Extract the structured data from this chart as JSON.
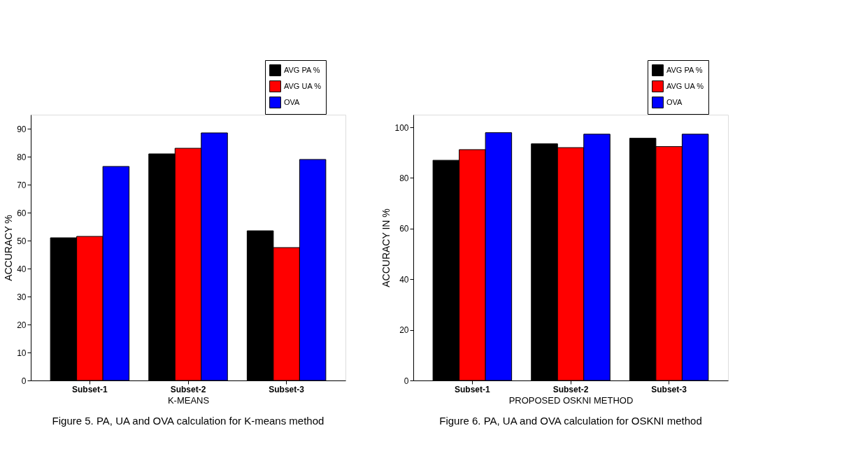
{
  "chart_data": [
    {
      "type": "bar",
      "xlabel": "K-MEANS",
      "ylabel": "ACCURACY %",
      "categories": [
        "Subset-1",
        "Subset-2",
        "Subset-3"
      ],
      "series": [
        {
          "name": "AVG PA %",
          "color": "#000000",
          "values": [
            51,
            81,
            53.5
          ]
        },
        {
          "name": "AVG UA %",
          "color": "#ff0000",
          "values": [
            51.5,
            83,
            47.5
          ]
        },
        {
          "name": "OVA",
          "color": "#0000ff",
          "values": [
            76.5,
            88.5,
            79
          ]
        }
      ],
      "ylim": [
        0,
        95
      ],
      "yticks": [
        0,
        10,
        20,
        30,
        40,
        50,
        60,
        70,
        80,
        90
      ],
      "grid": false,
      "legend": "top right",
      "annotations": [
        "Figure 5. PA, UA and OVA calculation for K-means method"
      ]
    },
    {
      "type": "bar",
      "xlabel": "PROPOSED OSKNI METHOD",
      "ylabel": "ACCURACY IN %",
      "categories": [
        "Subset-1",
        "Subset-2",
        "Subset-3"
      ],
      "series": [
        {
          "name": "AVG PA %",
          "color": "#000000",
          "values": [
            87,
            93.5,
            95.7
          ]
        },
        {
          "name": "AVG UA %",
          "color": "#ff0000",
          "values": [
            91.2,
            92,
            92.4
          ]
        },
        {
          "name": "OVA",
          "color": "#0000ff",
          "values": [
            97.9,
            97.3,
            97.3
          ]
        }
      ],
      "ylim": [
        0,
        105
      ],
      "yticks": [
        0,
        20,
        40,
        60,
        80,
        100
      ],
      "grid": false,
      "legend": "top right",
      "annotations": [
        "Figure 6. PA, UA and OVA calculation for OSKNI method"
      ]
    }
  ]
}
